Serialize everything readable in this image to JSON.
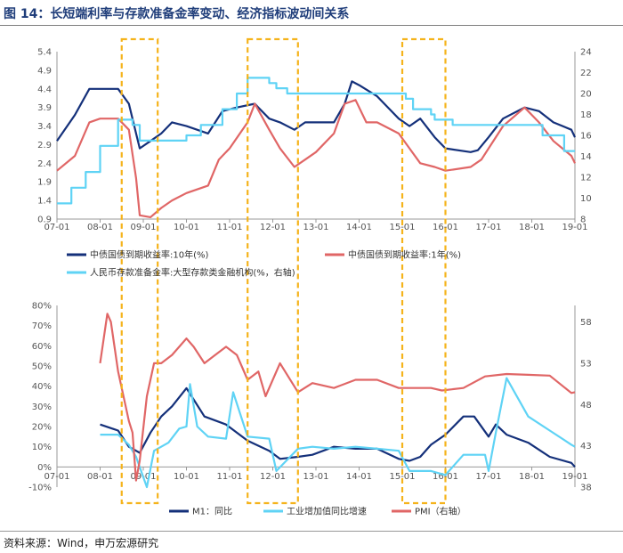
{
  "title": "图 14：长短端利率与存款准备金率变动、经济指标波动间关系",
  "source": "资料来源：Wind，申万宏源研究",
  "colors": {
    "navy": "#14307a",
    "red": "#e06666",
    "cyan": "#5fd3f5",
    "box": "#f5b31b"
  },
  "x_ticks": [
    "07-01",
    "08-01",
    "09-01",
    "10-01",
    "11-01",
    "12-01",
    "13-01",
    "14-01",
    "15-01",
    "16-01",
    "17-01",
    "18-01",
    "19-01"
  ],
  "highlight_boxes": [
    {
      "from": "2008-07",
      "to": "2009-05"
    },
    {
      "from": "2011-06",
      "to": "2012-08"
    },
    {
      "from": "2015-01",
      "to": "2016-01"
    }
  ],
  "chart_data": [
    {
      "type": "line",
      "x_range": [
        "2007-01",
        "2019-01"
      ],
      "y_left": {
        "ticks": [
          "0.9",
          "1.4",
          "1.9",
          "2.4",
          "2.9",
          "3.4",
          "3.9",
          "4.4",
          "4.9",
          "5.4"
        ],
        "lim": [
          0.9,
          5.4
        ]
      },
      "y_right": {
        "ticks": [
          "8",
          "10",
          "12",
          "14",
          "16",
          "18",
          "20",
          "22",
          "24"
        ],
        "lim": [
          8,
          24
        ]
      },
      "legend": [
        "中债国债到期收益率:10年(%)",
        "中债国债到期收益率:1年(%)",
        "人民币存款准备金率:大型存款类金融机构(%，右轴)"
      ],
      "series": [
        {
          "name": "中债国债到期收益率:10年(%)",
          "axis": "left",
          "color": "#14307a",
          "x": [
            "2007-01",
            "2007-06",
            "2007-10",
            "2008-01",
            "2008-06",
            "2008-09",
            "2008-11",
            "2008-12",
            "2009-03",
            "2009-06",
            "2009-09",
            "2010-01",
            "2010-07",
            "2010-11",
            "2011-03",
            "2011-08",
            "2011-09",
            "2011-12",
            "2012-03",
            "2012-07",
            "2012-10",
            "2013-01",
            "2013-06",
            "2013-09",
            "2013-11",
            "2014-01",
            "2014-06",
            "2014-12",
            "2015-03",
            "2015-06",
            "2015-10",
            "2016-01",
            "2016-08",
            "2016-10",
            "2017-01",
            "2017-05",
            "2017-11",
            "2018-03",
            "2018-07",
            "2018-12",
            "2019-01"
          ],
          "y": [
            3.0,
            3.7,
            4.4,
            4.4,
            4.4,
            4.0,
            3.2,
            2.8,
            3.0,
            3.2,
            3.5,
            3.4,
            3.2,
            3.8,
            3.9,
            4.0,
            3.9,
            3.6,
            3.5,
            3.3,
            3.5,
            3.5,
            3.5,
            4.0,
            4.6,
            4.5,
            4.2,
            3.6,
            3.4,
            3.6,
            3.1,
            2.8,
            2.7,
            2.75,
            3.1,
            3.6,
            3.9,
            3.8,
            3.5,
            3.3,
            3.1
          ]
        },
        {
          "name": "中债国债到期收益率:1年(%)",
          "axis": "left",
          "color": "#e06666",
          "x": [
            "2007-01",
            "2007-06",
            "2007-10",
            "2008-01",
            "2008-06",
            "2008-09",
            "2008-11",
            "2008-12",
            "2009-03",
            "2009-06",
            "2009-09",
            "2010-01",
            "2010-07",
            "2010-10",
            "2011-01",
            "2011-06",
            "2011-08",
            "2011-12",
            "2012-03",
            "2012-07",
            "2012-10",
            "2013-01",
            "2013-06",
            "2013-09",
            "2013-12",
            "2014-03",
            "2014-06",
            "2014-12",
            "2015-03",
            "2015-06",
            "2015-10",
            "2016-01",
            "2016-08",
            "2016-11",
            "2017-01",
            "2017-05",
            "2017-11",
            "2018-03",
            "2018-07",
            "2018-12",
            "2019-01"
          ],
          "y": [
            2.2,
            2.6,
            3.5,
            3.6,
            3.6,
            3.3,
            2.0,
            1.0,
            0.95,
            1.2,
            1.4,
            1.6,
            1.8,
            2.5,
            2.8,
            3.5,
            4.0,
            3.3,
            2.8,
            2.3,
            2.5,
            2.7,
            3.2,
            4.0,
            4.1,
            3.5,
            3.5,
            3.2,
            2.8,
            2.4,
            2.3,
            2.2,
            2.3,
            2.5,
            2.8,
            3.4,
            3.9,
            3.5,
            3.0,
            2.6,
            2.4
          ]
        },
        {
          "name": "人民币存款准备金率:大型存款类金融机构(%，右轴)",
          "axis": "right",
          "color": "#5fd3f5",
          "step": true,
          "x": [
            "2007-01",
            "2007-05",
            "2007-09",
            "2008-01",
            "2008-06",
            "2008-10",
            "2008-12",
            "2010-01",
            "2010-05",
            "2010-11",
            "2011-03",
            "2011-06",
            "2011-12",
            "2012-02",
            "2012-05",
            "2015-02",
            "2015-04",
            "2015-09",
            "2015-10",
            "2016-03",
            "2018-04",
            "2018-10",
            "2019-01"
          ],
          "y": [
            9.5,
            11.0,
            12.5,
            15.0,
            17.5,
            17.0,
            15.5,
            16.0,
            17.0,
            18.5,
            20.0,
            21.5,
            21.0,
            20.5,
            20.0,
            19.5,
            18.5,
            18.0,
            17.5,
            17.0,
            16.0,
            14.5,
            14.5
          ]
        }
      ]
    },
    {
      "type": "line",
      "x_range": [
        "2007-01",
        "2019-01"
      ],
      "y_left": {
        "ticks": [
          "-10%",
          "0%",
          "10%",
          "20%",
          "30%",
          "40%",
          "50%",
          "60%",
          "70%",
          "80%"
        ],
        "lim": [
          -10,
          80
        ]
      },
      "y_right": {
        "ticks": [
          "38",
          "43",
          "48",
          "53",
          "58"
        ],
        "lim": [
          38,
          60
        ]
      },
      "legend": [
        "M1：同比",
        "工业增加值同比增速",
        "PMI（右轴）"
      ],
      "series": [
        {
          "name": "M1：同比",
          "axis": "left",
          "color": "#14307a",
          "x": [
            "2008-01",
            "2008-06",
            "2008-09",
            "2008-12",
            "2009-03",
            "2009-06",
            "2009-09",
            "2010-01",
            "2010-06",
            "2010-12",
            "2011-06",
            "2011-12",
            "2012-03",
            "2012-08",
            "2012-12",
            "2013-06",
            "2013-12",
            "2014-06",
            "2014-12",
            "2015-03",
            "2015-06",
            "2015-09",
            "2016-01",
            "2016-06",
            "2016-09",
            "2017-01",
            "2017-03",
            "2017-06",
            "2017-12",
            "2018-06",
            "2018-12",
            "2019-01"
          ],
          "y": [
            21,
            18,
            10,
            7,
            17,
            25,
            30,
            39,
            25,
            21,
            13,
            8,
            4,
            5,
            6,
            10,
            9,
            9,
            4,
            3,
            5,
            11,
            16,
            25,
            25,
            15,
            21,
            16,
            12,
            5,
            2,
            0
          ]
        },
        {
          "name": "工业增加值同比增速",
          "axis": "left",
          "color": "#5fd3f5",
          "x": [
            "2008-01",
            "2008-06",
            "2008-09",
            "2008-11",
            "2009-02",
            "2009-04",
            "2009-08",
            "2009-11",
            "2010-01",
            "2010-02",
            "2010-04",
            "2010-07",
            "2010-12",
            "2011-02",
            "2011-06",
            "2011-12",
            "2012-02",
            "2012-08",
            "2012-12",
            "2013-06",
            "2013-12",
            "2014-06",
            "2014-12",
            "2015-03",
            "2015-09",
            "2016-01",
            "2016-06",
            "2016-12",
            "2017-01",
            "2017-03",
            "2017-06",
            "2017-12",
            "2018-06",
            "2018-12",
            "2019-01"
          ],
          "y": [
            16,
            16,
            11,
            5,
            -10,
            8,
            12,
            19,
            20,
            41,
            20,
            15,
            14,
            37,
            15,
            14,
            -2,
            9,
            10,
            9,
            10,
            9,
            8,
            -2,
            -2,
            -4,
            6,
            6,
            -2,
            17,
            44,
            25,
            18,
            11,
            10
          ]
        },
        {
          "name": "PMI（右轴）",
          "axis": "right",
          "color": "#e06666",
          "x": [
            "2008-01",
            "2008-03",
            "2008-04",
            "2008-06",
            "2008-08",
            "2008-09",
            "2008-10",
            "2008-11",
            "2008-12",
            "2009-02",
            "2009-04",
            "2009-06",
            "2009-09",
            "2010-01",
            "2010-03",
            "2010-06",
            "2010-09",
            "2010-12",
            "2011-03",
            "2011-06",
            "2011-09",
            "2011-11",
            "2012-03",
            "2012-08",
            "2012-12",
            "2013-06",
            "2013-12",
            "2014-06",
            "2014-12",
            "2015-03",
            "2015-09",
            "2015-12",
            "2016-06",
            "2016-12",
            "2017-06",
            "2017-12",
            "2018-06",
            "2018-12",
            "2019-01"
          ],
          "y": [
            53,
            59,
            58,
            52,
            48,
            46,
            44.6,
            38.8,
            41.2,
            49,
            53,
            53,
            54,
            56,
            55,
            53,
            54,
            55,
            54,
            51,
            52,
            49,
            53,
            49.5,
            50.6,
            50,
            51,
            51,
            50,
            50,
            50,
            49.7,
            50,
            51.4,
            51.7,
            51.6,
            51.5,
            49.4,
            49.5
          ]
        }
      ]
    }
  ]
}
